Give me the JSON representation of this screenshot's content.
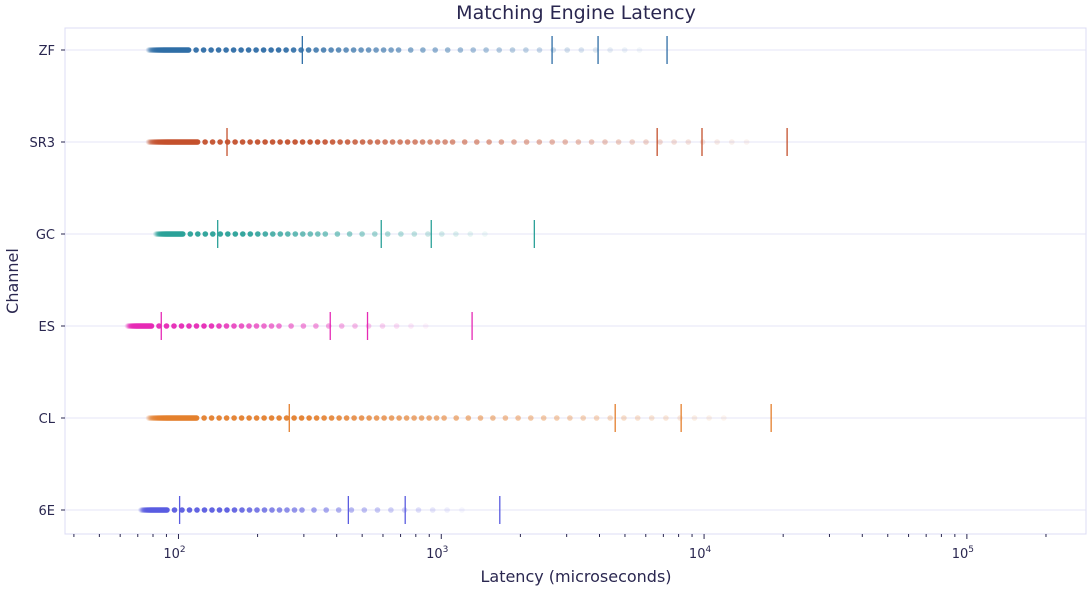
{
  "chart_data": {
    "type": "scatter",
    "title": "Matching Engine Latency",
    "xlabel": "Latency (microseconds)",
    "ylabel": "Channel",
    "x_scale": "log",
    "xlim": [
      37,
      284000
    ],
    "x_ticks": [
      {
        "value": 100,
        "base": "10",
        "exp": "2"
      },
      {
        "value": 1000,
        "base": "10",
        "exp": "3"
      },
      {
        "value": 10000,
        "base": "10",
        "exp": "4"
      },
      {
        "value": 100000,
        "base": "10",
        "exp": "5"
      }
    ],
    "categories": [
      "ZF",
      "SR3",
      "GC",
      "ES",
      "CL",
      "6E"
    ],
    "grid": true,
    "series": [
      {
        "name": "ZF",
        "color": "#2f6ea6",
        "min": 77,
        "max": 5750,
        "markers": [
          296,
          2640,
          3950,
          7230
        ]
      },
      {
        "name": "SR3",
        "color": "#c4512d",
        "min": 77,
        "max": 15300,
        "markers": [
          153,
          6630,
          9820,
          20700
        ]
      },
      {
        "name": "GC",
        "color": "#2aa198",
        "min": 82,
        "max": 1540,
        "markers": [
          141,
          591,
          916,
          2260
        ]
      },
      {
        "name": "ES",
        "color": "#e62ab5",
        "min": 64,
        "max": 875,
        "markers": [
          86,
          378,
          524,
          1310
        ]
      },
      {
        "name": "CL",
        "color": "#e47f2d",
        "min": 77,
        "max": 13400,
        "markers": [
          264,
          4590,
          8180,
          18000
        ]
      },
      {
        "name": "6E",
        "color": "#5a5ce0",
        "min": 72,
        "max": 1200,
        "markers": [
          101,
          443,
          729,
          1670
        ]
      }
    ]
  }
}
